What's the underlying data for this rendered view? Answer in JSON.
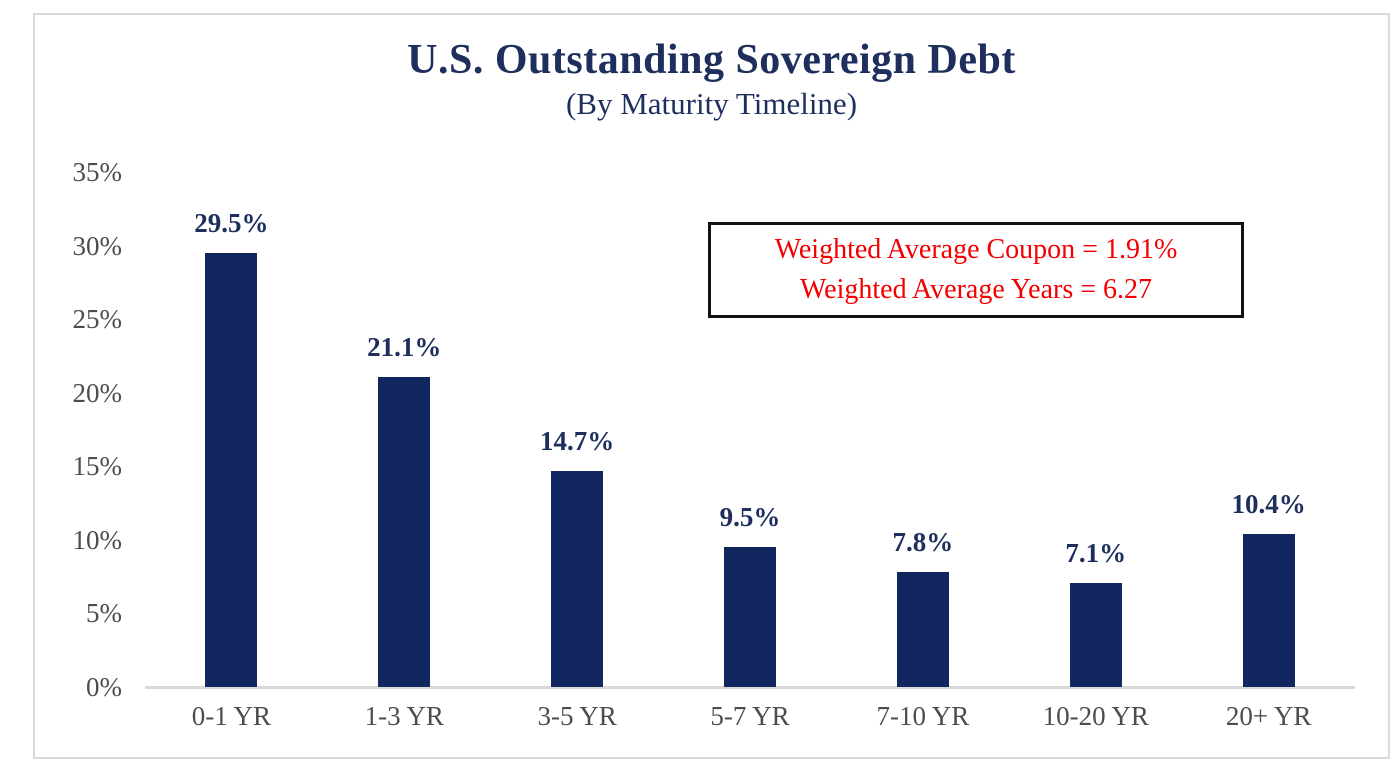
{
  "chart_data": {
    "type": "bar",
    "title": "U.S. Outstanding Sovereign Debt",
    "subtitle": "(By Maturity Timeline)",
    "categories": [
      "0-1 YR",
      "1-3 YR",
      "3-5 YR",
      "5-7 YR",
      "7-10 YR",
      "10-20 YR",
      "20+ YR"
    ],
    "values": [
      29.5,
      21.1,
      14.7,
      9.5,
      7.8,
      7.1,
      10.4
    ],
    "value_labels": [
      "29.5%",
      "21.1%",
      "14.7%",
      "9.5%",
      "7.8%",
      "7.1%",
      "10.4%"
    ],
    "xlabel": "",
    "ylabel": "",
    "ylim": [
      0,
      35
    ],
    "yticks": [
      {
        "value": 35,
        "label": "35%"
      },
      {
        "value": 30,
        "label": "30%"
      },
      {
        "value": 25,
        "label": "25%"
      },
      {
        "value": 20,
        "label": "20%"
      },
      {
        "value": 15,
        "label": "15%"
      },
      {
        "value": 10,
        "label": "10%"
      },
      {
        "value": 5,
        "label": "5%"
      },
      {
        "value": 0,
        "label": "0%"
      }
    ],
    "grid": false,
    "legend": false,
    "annotations": [
      "Weighted Average Coupon = 1.91%",
      "Weighted Average Years = 6.27"
    ]
  },
  "colors": {
    "bar": "#122760",
    "title_text": "#1e2f5e",
    "bar_label_text": "#1e2f5e",
    "annotation_text": "#f40000",
    "annotation_border": "#111111",
    "axis_text": "#4d4d4d",
    "axis_line": "#d9d9d9",
    "frame_border": "#dadada",
    "background": "#ffffff"
  }
}
